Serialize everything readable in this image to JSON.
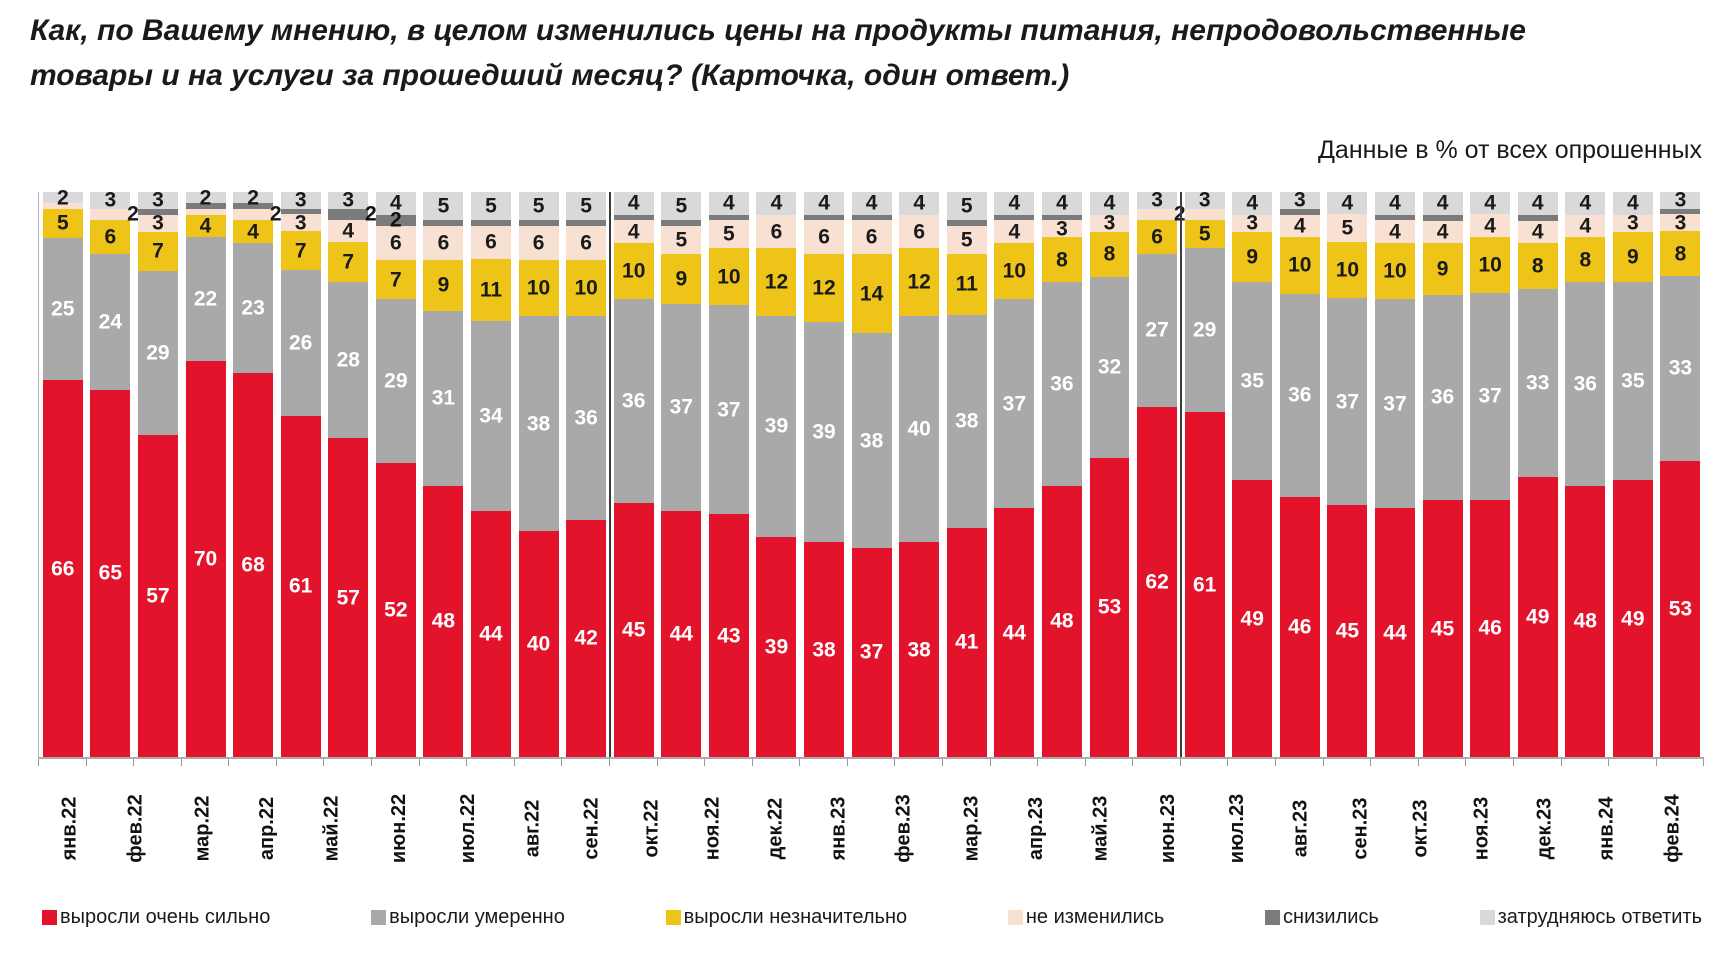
{
  "header": {
    "title_line1": "Как, по Вашему мнению, в целом изменились цены на продукты питания, непродовольственные",
    "title_line2": "товары и на услуги за прошедший месяц? (Карточка, один ответ.)",
    "subtitle": "Данные в % от всех опрошенных"
  },
  "chart_data": {
    "type": "bar",
    "stacked": true,
    "unit": "% от всех опрошенных",
    "ylim": [
      0,
      100
    ],
    "grid": false,
    "legend_position": "bottom",
    "categories": [
      "янв.22",
      "фев.22",
      "мар.22",
      "апр.22",
      "май.22",
      "июн.22",
      "июл.22",
      "авг.22",
      "сен.22",
      "окт.22",
      "ноя.22",
      "дек.22",
      "янв.23",
      "фев.23",
      "мар.23",
      "апр.23",
      "май.23",
      "июн.23",
      "июл.23",
      "авг.23",
      "сен.23",
      "окт.23",
      "ноя.23",
      "дек.23",
      "янв.24",
      "фев.24",
      "мар.24",
      "апр.24",
      "май.24",
      "июн.24",
      "июл.24",
      "авг.24",
      "сен.24",
      "окт.24",
      "ноя.24"
    ],
    "series": [
      {
        "name": "выросли очень сильно",
        "color": "#e3132c",
        "label_color": "#ffffff",
        "values": [
          66,
          65,
          57,
          70,
          68,
          61,
          57,
          52,
          48,
          44,
          40,
          42,
          45,
          44,
          43,
          39,
          38,
          37,
          38,
          41,
          44,
          48,
          53,
          62,
          61,
          49,
          46,
          45,
          44,
          45,
          46,
          49,
          48,
          49,
          53
        ],
        "labels": [
          "66",
          "65",
          "57",
          "70",
          "68",
          "61",
          "57",
          "52",
          "48",
          "44",
          "40",
          "42",
          "45",
          "44",
          "43",
          "39",
          "38",
          "37",
          "38",
          "41",
          "44",
          "48",
          "53",
          "62",
          "61",
          "49",
          "46",
          "45",
          "44",
          "45",
          "46",
          "49",
          "48",
          "49",
          "53"
        ]
      },
      {
        "name": "выросли умеренно",
        "color": "#a9a9a9",
        "label_color": "#ffffff",
        "values": [
          25,
          24,
          29,
          22,
          23,
          26,
          28,
          29,
          31,
          34,
          38,
          36,
          36,
          37,
          37,
          39,
          39,
          38,
          40,
          38,
          37,
          36,
          32,
          27,
          29,
          35,
          36,
          37,
          37,
          36,
          37,
          33,
          36,
          35,
          33
        ],
        "labels": [
          "25",
          "24",
          "29",
          "22",
          "23",
          "26",
          "28",
          "29",
          "31",
          "34",
          "38",
          "36",
          "36",
          "37",
          "37",
          "39",
          "39",
          "38",
          "40",
          "38",
          "37",
          "36",
          "32",
          "27",
          "29",
          "35",
          "36",
          "37",
          "37",
          "36",
          "37",
          "33",
          "36",
          "35",
          "33"
        ]
      },
      {
        "name": "выросли незначительно",
        "color": "#edc417",
        "label_color": "#1a1a1a",
        "values": [
          5,
          6,
          7,
          4,
          4,
          7,
          7,
          7,
          9,
          11,
          10,
          10,
          10,
          9,
          10,
          12,
          12,
          14,
          12,
          11,
          10,
          8,
          8,
          6,
          5,
          9,
          10,
          10,
          10,
          9,
          10,
          8,
          8,
          9,
          8
        ],
        "labels": [
          "5",
          "6",
          "7",
          "4",
          "4",
          "7",
          "7",
          "7",
          "9",
          "11",
          "10",
          "10",
          "10",
          "9",
          "10",
          "12",
          "12",
          "14",
          "12",
          "11",
          "10",
          "8",
          "8",
          "6",
          "5",
          "9",
          "10",
          "10",
          "10",
          "9",
          "10",
          "8",
          "8",
          "9",
          "8"
        ]
      },
      {
        "name": "не изменились",
        "color": "#f8e1d2",
        "label_color": "#1a1a1a",
        "values": [
          1,
          2,
          3,
          1,
          2,
          3,
          4,
          6,
          6,
          6,
          6,
          6,
          4,
          5,
          5,
          6,
          6,
          6,
          6,
          5,
          4,
          3,
          3,
          2,
          2,
          3,
          4,
          5,
          4,
          4,
          4,
          4,
          4,
          3,
          3
        ],
        "labels": [
          "",
          "2",
          "3",
          "",
          "2",
          "3",
          "4",
          "6",
          "6",
          "6",
          "6",
          "6",
          "4",
          "5",
          "5",
          "6",
          "6",
          "6",
          "6",
          "5",
          "4",
          "3",
          "3",
          "2",
          "",
          "3",
          "4",
          "5",
          "4",
          "4",
          "4",
          "4",
          "4",
          "3",
          "3"
        ]
      },
      {
        "name": "снизились",
        "color": "#7b7b7b",
        "label_color": "#111111",
        "values": [
          0,
          0,
          1,
          1,
          1,
          1,
          2,
          2,
          1,
          1,
          1,
          1,
          1,
          1,
          1,
          0,
          1,
          1,
          0,
          1,
          1,
          1,
          0,
          0,
          0,
          0,
          1,
          0,
          1,
          1,
          0,
          1,
          0,
          0,
          1
        ],
        "labels": [
          "",
          "",
          "",
          "",
          "",
          "",
          "2",
          "2",
          "",
          "",
          "",
          "",
          "",
          "",
          "",
          "",
          "",
          "",
          "",
          "",
          "",
          "",
          "",
          "",
          "",
          "",
          "",
          "",
          "",
          "",
          "",
          "",
          "",
          "",
          ""
        ]
      },
      {
        "name": "затрудняюсь ответить",
        "color": "#d9d9d9",
        "label_color": "#1a1a1a",
        "values": [
          2,
          3,
          3,
          2,
          2,
          3,
          3,
          4,
          5,
          5,
          5,
          5,
          4,
          5,
          4,
          4,
          4,
          4,
          4,
          5,
          4,
          4,
          4,
          3,
          3,
          4,
          3,
          4,
          4,
          4,
          4,
          4,
          4,
          4,
          3
        ],
        "labels": [
          "2",
          "3",
          "3",
          "2",
          "2",
          "3",
          "3",
          "4",
          "5",
          "5",
          "5",
          "5",
          "4",
          "5",
          "4",
          "4",
          "4",
          "4",
          "4",
          "5",
          "4",
          "4",
          "4",
          "3",
          "3",
          "4",
          "3",
          "4",
          "4",
          "4",
          "4",
          "4",
          "4",
          "4",
          "3"
        ]
      }
    ],
    "year_separators_after": [
      11,
      23
    ],
    "offset_right_labels": [
      [
        3,
        1
      ],
      [
        3,
        4
      ],
      [
        4,
        6
      ],
      [
        3,
        23
      ]
    ]
  }
}
